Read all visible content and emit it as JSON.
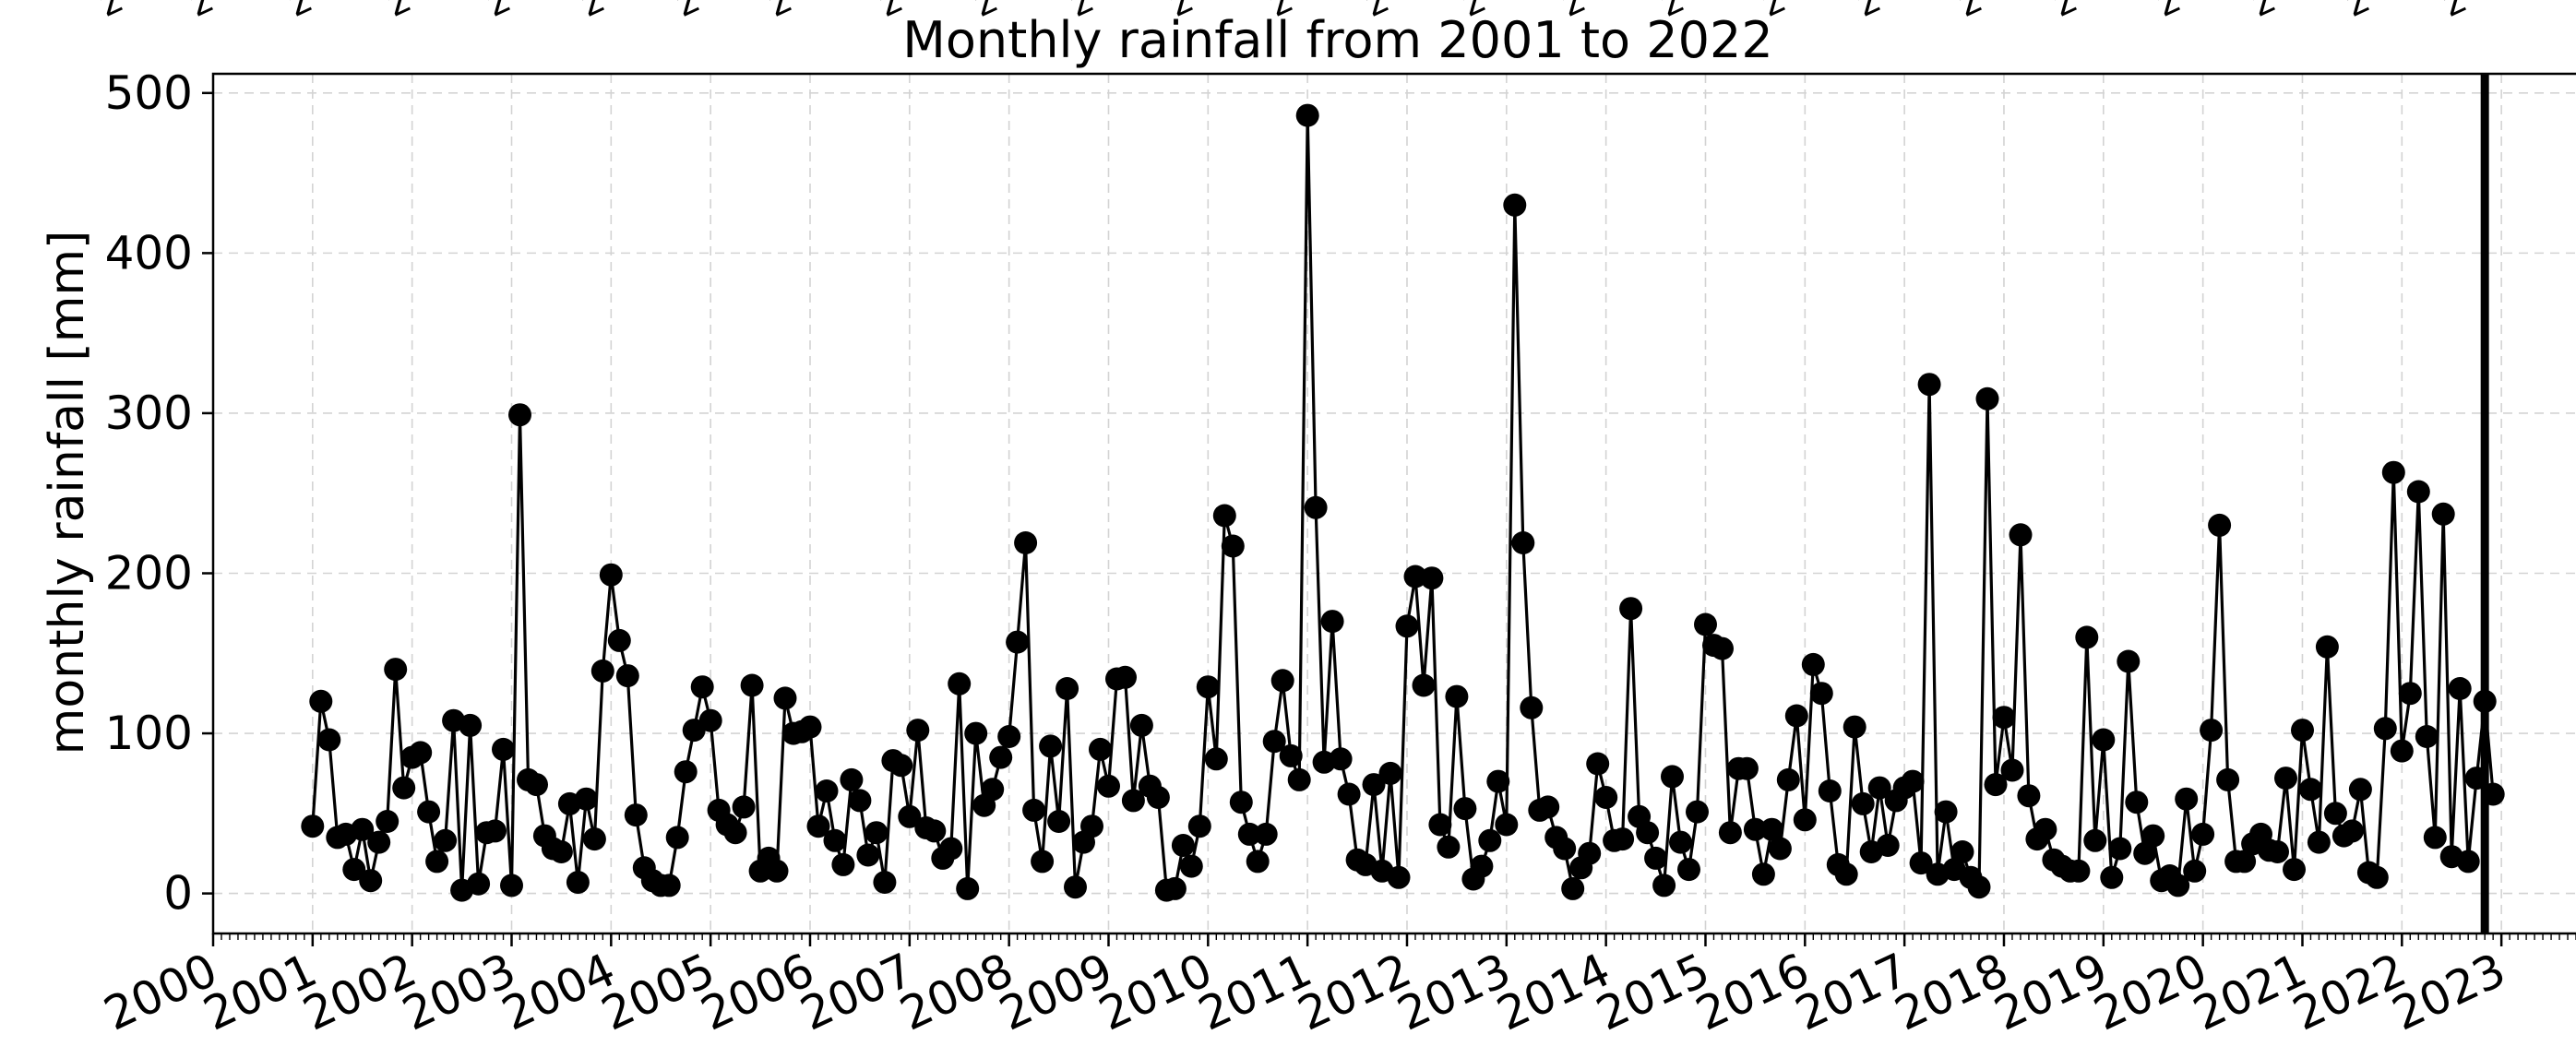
{
  "chart_data": {
    "type": "line",
    "title": "Monthly rainfall from 2001  to 2022",
    "xlabel": "",
    "ylabel": "monthly rainfall [mm]",
    "ylim": [
      -25,
      512
    ],
    "xlim": [
      "2000-01",
      "2023-11"
    ],
    "grid": true,
    "marker": "filled circle",
    "line_color": "#000000",
    "y_ticks": [
      "0",
      "100",
      "200",
      "300",
      "400",
      "500"
    ],
    "x_ticks": [
      "2000",
      "2001",
      "2002",
      "2003",
      "2004",
      "2005",
      "2006",
      "2007",
      "2008",
      "2009",
      "2010",
      "2011",
      "2012",
      "2013",
      "2014",
      "2015",
      "2016",
      "2017",
      "2018",
      "2019",
      "2020",
      "2021",
      "2022",
      "2023"
    ],
    "vertical_line": {
      "x": "2022-11",
      "color": "#000000"
    },
    "top_marks": "z",
    "x_start": "2001-01",
    "series": [
      {
        "values": [
          42,
          120,
          96,
          35,
          37,
          15,
          40,
          8,
          32,
          45,
          140,
          66,
          85,
          88,
          51,
          20,
          33,
          108,
          2,
          105,
          6,
          38,
          39,
          90,
          5,
          299,
          71,
          68,
          36,
          28,
          26,
          56,
          7,
          59,
          34,
          139,
          199,
          158,
          136,
          49,
          16,
          8,
          5,
          5,
          35,
          76,
          102,
          129,
          108,
          52,
          43,
          38,
          54,
          130,
          14,
          22,
          14,
          122,
          100,
          101,
          104,
          42,
          64,
          33,
          18,
          71,
          58,
          24,
          38,
          7,
          83,
          80,
          48,
          102,
          41,
          39,
          22,
          28,
          131,
          3,
          100,
          55,
          65,
          85,
          98,
          157,
          219,
          52,
          20,
          92,
          45,
          128,
          4,
          32,
          42,
          90,
          67,
          134,
          135,
          58,
          105,
          67,
          60,
          2,
          3,
          30,
          17,
          42,
          129,
          84,
          236,
          217,
          57,
          37,
          20,
          37,
          95,
          133,
          86,
          71,
          486,
          241,
          82,
          170,
          84,
          62,
          21,
          18,
          68,
          14,
          75,
          10,
          167,
          198,
          130,
          197,
          43,
          29,
          123,
          53,
          9,
          17,
          33,
          70,
          43,
          430,
          219,
          116,
          52,
          54,
          35,
          28,
          3,
          16,
          25,
          81,
          60,
          33,
          34,
          178,
          48,
          38,
          22,
          5,
          73,
          32,
          15,
          51,
          168,
          155,
          153,
          38,
          78,
          78,
          40,
          12,
          40,
          28,
          71,
          111,
          46,
          143,
          125,
          64,
          18,
          12,
          104,
          56,
          26,
          66,
          30,
          58,
          66,
          70,
          19,
          318,
          12,
          51,
          15,
          26,
          10,
          4,
          309,
          68,
          110,
          77,
          224,
          61,
          34,
          40,
          21,
          17,
          14,
          14,
          160,
          33,
          96,
          10,
          28,
          145,
          57,
          25,
          36,
          8,
          11,
          5,
          59,
          14,
          37,
          102,
          230,
          71,
          20,
          20,
          31,
          37,
          27,
          26,
          72,
          15,
          102,
          65,
          32,
          154,
          50,
          36,
          39,
          65,
          13,
          10,
          103,
          263,
          89,
          125,
          251,
          98,
          35,
          237,
          23,
          128,
          20,
          72,
          120,
          62
        ]
      }
    ]
  }
}
